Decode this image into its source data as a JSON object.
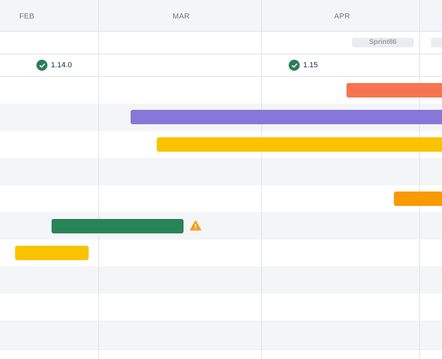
{
  "timeline": {
    "months": [
      "FEB",
      "MAR",
      "APR"
    ],
    "sprints": [
      "Sprint86",
      ""
    ],
    "releases": [
      {
        "label": "1.14.0",
        "status": "released"
      },
      {
        "label": "1.15",
        "status": "released"
      }
    ],
    "bars": [
      {
        "name": "bar-orange-red",
        "color": "#f87350"
      },
      {
        "name": "bar-purple",
        "color": "#8777d9"
      },
      {
        "name": "bar-yellow-long",
        "color": "#f9c300"
      },
      {
        "name": "bar-orange",
        "color": "#f99a00"
      },
      {
        "name": "bar-green",
        "color": "#288358"
      },
      {
        "name": "bar-yellow-short",
        "color": "#f9c300"
      }
    ],
    "warning": {
      "icon": "warning-icon",
      "color": "#f79d1b"
    },
    "release_icon": "check-circle-icon"
  }
}
